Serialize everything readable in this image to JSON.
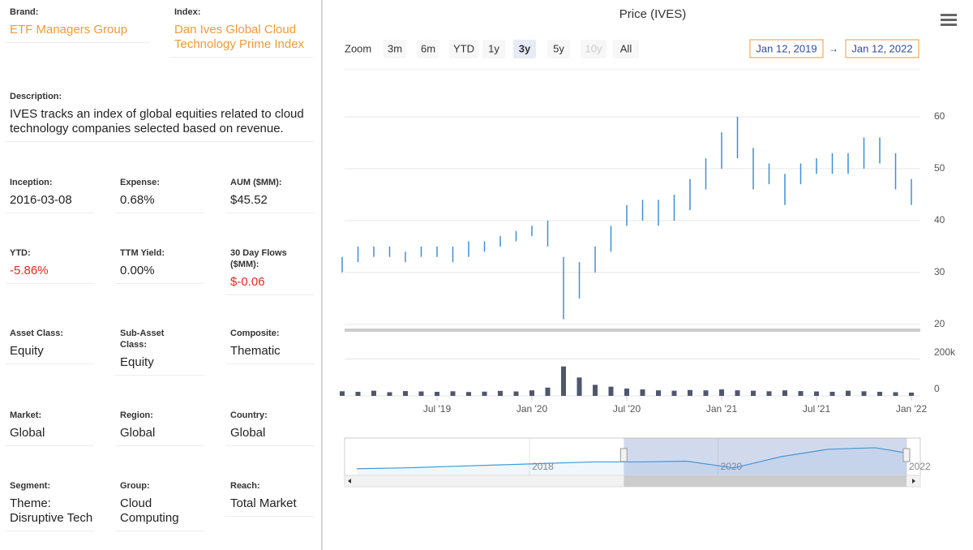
{
  "fields": [
    {
      "label": "Brand:",
      "value": "ETF Managers Group"
    },
    {
      "label": "Index:",
      "value": "Dan Ives Global Cloud Technology Prime Index"
    },
    {
      "label": "Description:",
      "value": "IVES tracks an index of global equities related to cloud technology companies selected based on revenue."
    },
    {
      "label": "Inception:",
      "value": "2016-03-08"
    },
    {
      "label": "Expense:",
      "value": "0.68%"
    },
    {
      "label": "AUM ($MM):",
      "value": "$45.52"
    },
    {
      "label": "YTD:",
      "value": "-5.86%"
    },
    {
      "label": "TTM Yield:",
      "value": "0.00%"
    },
    {
      "label": "30 Day Flows ($MM):",
      "value": "$-0.06"
    },
    {
      "label": "Asset Class:",
      "value": "Equity"
    },
    {
      "label": "Sub-Asset Class:",
      "value": "Equity"
    },
    {
      "label": "Composite:",
      "value": "Thematic"
    },
    {
      "label": "Market:",
      "value": "Global"
    },
    {
      "label": "Region:",
      "value": "Global"
    },
    {
      "label": "Country:",
      "value": "Global"
    },
    {
      "label": "Segment:",
      "value": "Theme: Disruptive Tech"
    },
    {
      "label": "Group:",
      "value": "Cloud Computing"
    },
    {
      "label": "Reach:",
      "value": "Total Market"
    }
  ],
  "toolbar": {
    "zoom_label": "Zoom",
    "buttons": [
      "3m",
      "6m",
      "YTD",
      "1y",
      "3y",
      "5y",
      "10y",
      "All"
    ],
    "selected": "3y",
    "disabled": [
      "10y"
    ],
    "from": "Jan 12, 2019",
    "arrow": "→",
    "to": "Jan 12, 2022"
  },
  "chart_data": {
    "type": "ohlc",
    "title": "Price (IVES)",
    "color": "#3f8fd2",
    "x": [
      "2019-01",
      "2019-02",
      "2019-03",
      "2019-04",
      "2019-05",
      "2019-06",
      "2019-07",
      "2019-08",
      "2019-09",
      "2019-10",
      "2019-11",
      "2019-12",
      "2020-01",
      "2020-02",
      "2020-03",
      "2020-04",
      "2020-05",
      "2020-06",
      "2020-07",
      "2020-08",
      "2020-09",
      "2020-10",
      "2020-11",
      "2020-12",
      "2021-01",
      "2021-02",
      "2021-03",
      "2021-04",
      "2021-05",
      "2021-06",
      "2021-07",
      "2021-08",
      "2021-09",
      "2021-10",
      "2021-11",
      "2021-12",
      "2022-01"
    ],
    "high": [
      33,
      35,
      35,
      35,
      34,
      35,
      35,
      35,
      36,
      36,
      37,
      38,
      39,
      40,
      33,
      32,
      35,
      39,
      43,
      44,
      44,
      45,
      48,
      52,
      57,
      60,
      54,
      51,
      49,
      51,
      52,
      53,
      53,
      56,
      56,
      53,
      48
    ],
    "low": [
      30,
      32,
      33,
      33,
      32,
      33,
      33,
      32,
      33,
      34,
      35,
      36,
      37,
      35,
      21,
      25,
      30,
      34,
      39,
      40,
      39,
      40,
      42,
      46,
      50,
      52,
      46,
      47,
      43,
      47,
      49,
      49,
      49,
      50,
      51,
      46,
      43
    ],
    "xlim": [
      "2019-01",
      "2022-01"
    ],
    "xticks": [
      {
        "value": "2019-07",
        "label": "Jul '19"
      },
      {
        "value": "2020-01",
        "label": "Jan '20"
      },
      {
        "value": "2020-07",
        "label": "Jul '20"
      },
      {
        "value": "2021-01",
        "label": "Jan '21"
      },
      {
        "value": "2021-07",
        "label": "Jul '21"
      },
      {
        "value": "2022-01",
        "label": "Jan '22"
      }
    ],
    "ylim": [
      19.2,
      68.9
    ],
    "yticks": [
      20,
      30,
      40,
      50,
      60
    ],
    "grid": true,
    "volume": {
      "color": "#50566c",
      "values": [
        25000,
        22000,
        28000,
        20000,
        26000,
        24000,
        22000,
        25000,
        21000,
        23000,
        27000,
        24000,
        30000,
        45000,
        160000,
        100000,
        60000,
        50000,
        40000,
        35000,
        30000,
        28000,
        32000,
        30000,
        35000,
        30000,
        28000,
        25000,
        30000,
        26000,
        24000,
        22000,
        28000,
        25000,
        22000,
        20000,
        18000
      ],
      "ylim": [
        0,
        300000
      ],
      "yticks": [
        0,
        {
          "value": 200000,
          "label": "200k"
        }
      ]
    },
    "navigator": {
      "color": "#3f9ad8",
      "x": [
        "2016-03",
        "2016-09",
        "2017-03",
        "2017-09",
        "2018-03",
        "2018-09",
        "2019-03",
        "2019-09",
        "2020-03",
        "2020-09",
        "2021-03",
        "2021-09",
        "2022-01"
      ],
      "values": [
        24,
        25,
        27,
        29,
        31,
        33,
        33,
        34,
        25,
        40,
        50,
        52,
        45
      ],
      "xlim": [
        "2016-03",
        "2022-01"
      ],
      "ylim": [
        15,
        65
      ],
      "xticks": [
        {
          "value": "2018-01",
          "label": "2018"
        },
        {
          "value": "2020-01",
          "label": "2020"
        },
        {
          "value": "2022-01",
          "label": "2022"
        }
      ]
    }
  }
}
